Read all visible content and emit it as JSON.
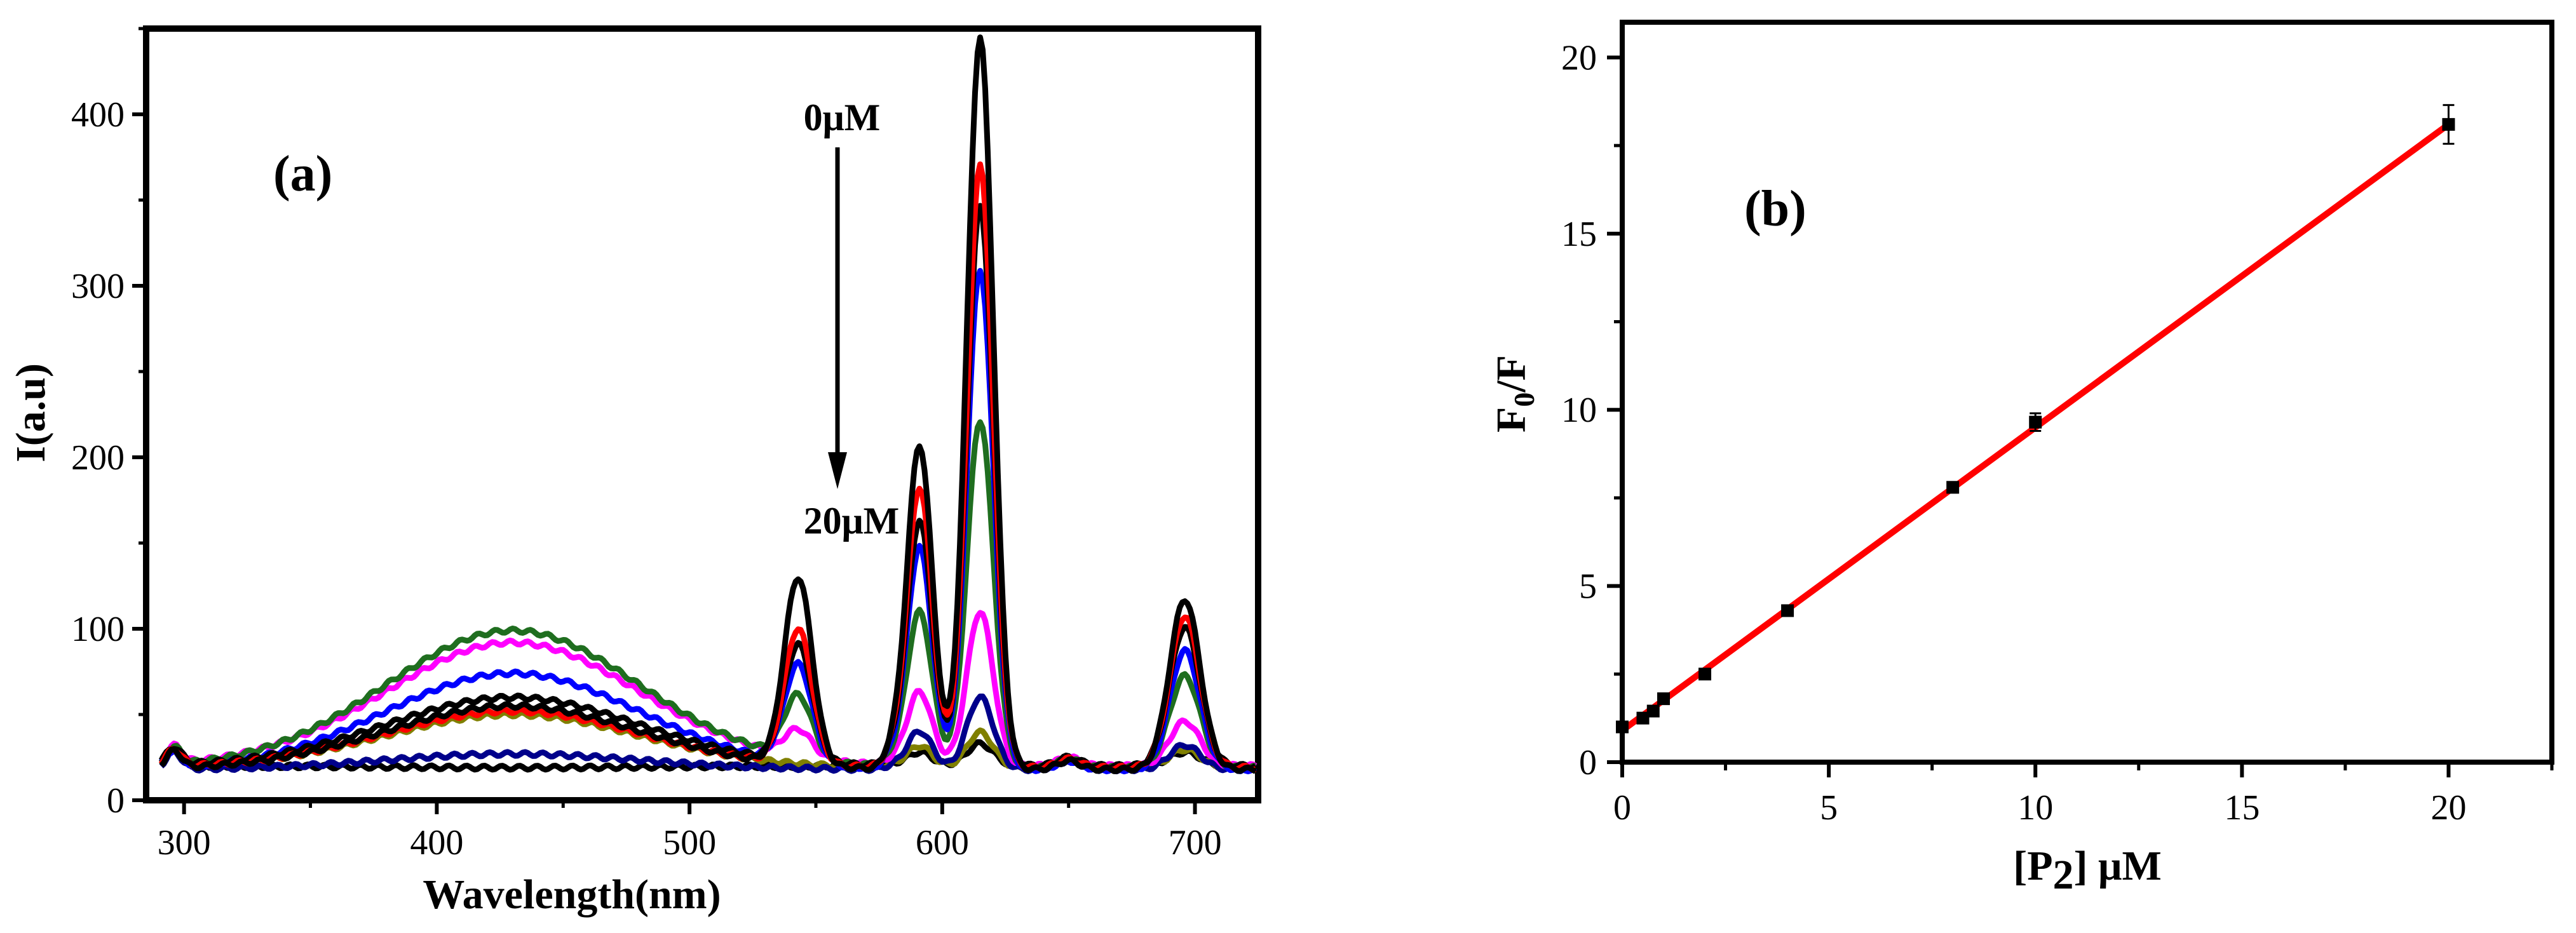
{
  "panel_a": {
    "label": "(a)",
    "annotation_top": "0μM",
    "annotation_bottom": "20μM"
  },
  "panel_b": {
    "label": "(b)",
    "ylabel_main": "F",
    "ylabel_sub": "0",
    "ylabel_tail": "/F",
    "xlabel_open": "[P",
    "xlabel_sub": "2",
    "xlabel_close": "] μM"
  },
  "chart_data": [
    {
      "type": "line",
      "title": "",
      "xlabel": "Wavelength(nm)",
      "ylabel": "I(a.u)",
      "xlim": [
        285,
        725
      ],
      "ylim": [
        0,
        450
      ],
      "xticks": [
        300,
        400,
        500,
        600,
        700
      ],
      "yticks": [
        0,
        100,
        200,
        300,
        400
      ],
      "grid": false,
      "series": [
        {
          "name": "0μM",
          "color": "#000000",
          "broad": 55,
          "peaks": [
            120,
            200,
            437,
            110
          ],
          "wobble": 0
        },
        {
          "name": "s2",
          "color": "#ff0000",
          "broad": 52,
          "peaks": [
            90,
            175,
            362,
            100
          ],
          "wobble": 1
        },
        {
          "name": "s3",
          "color": "#000000",
          "broad": 60,
          "peaks": [
            80,
            155,
            338,
            93
          ],
          "wobble": 2
        },
        {
          "name": "s4",
          "color": "#0000ff",
          "broad": 74,
          "peaks": [
            68,
            140,
            302,
            80
          ],
          "wobble": 3
        },
        {
          "name": "s5",
          "color": "#1f6e1f",
          "broad": 99,
          "peaks": [
            48,
            102,
            214,
            65
          ],
          "wobble": 4
        },
        {
          "name": "s6",
          "color": "#ff00ff",
          "broad": 92,
          "peaks": [
            28,
            55,
            102,
            38
          ],
          "wobble": 5
        },
        {
          "name": "s7",
          "color": "#00008b",
          "broad": 27,
          "peaks": [
            4,
            33,
            53,
            25
          ],
          "wobble": 6
        },
        {
          "name": "s8",
          "color": "#808000",
          "broad": 50,
          "peaks": [
            3,
            24,
            32,
            22
          ],
          "wobble": 7
        },
        {
          "name": "20μM",
          "color": "#000000",
          "broad": 19,
          "peaks": [
            1,
            20,
            25,
            20
          ],
          "wobble": 8
        }
      ]
    },
    {
      "type": "scatter",
      "title": "",
      "xlabel": "[P2] μM",
      "ylabel": "F0/F",
      "xlim": [
        0,
        22.5
      ],
      "ylim": [
        0,
        21
      ],
      "xticks": [
        0,
        5,
        10,
        15,
        20
      ],
      "yticks": [
        0,
        5,
        10,
        15,
        20
      ],
      "x": [
        0,
        0.5,
        0.75,
        1,
        2,
        4,
        8,
        10,
        20
      ],
      "y": [
        1.0,
        1.25,
        1.45,
        1.8,
        2.5,
        4.3,
        7.8,
        9.65,
        18.1
      ],
      "yerr": [
        0.05,
        0.05,
        0.05,
        0.08,
        0.1,
        0.1,
        0.15,
        0.25,
        0.55
      ],
      "fit": {
        "x": [
          0,
          20
        ],
        "y": [
          0.9,
          18.1
        ],
        "color": "#ff0000"
      }
    }
  ]
}
